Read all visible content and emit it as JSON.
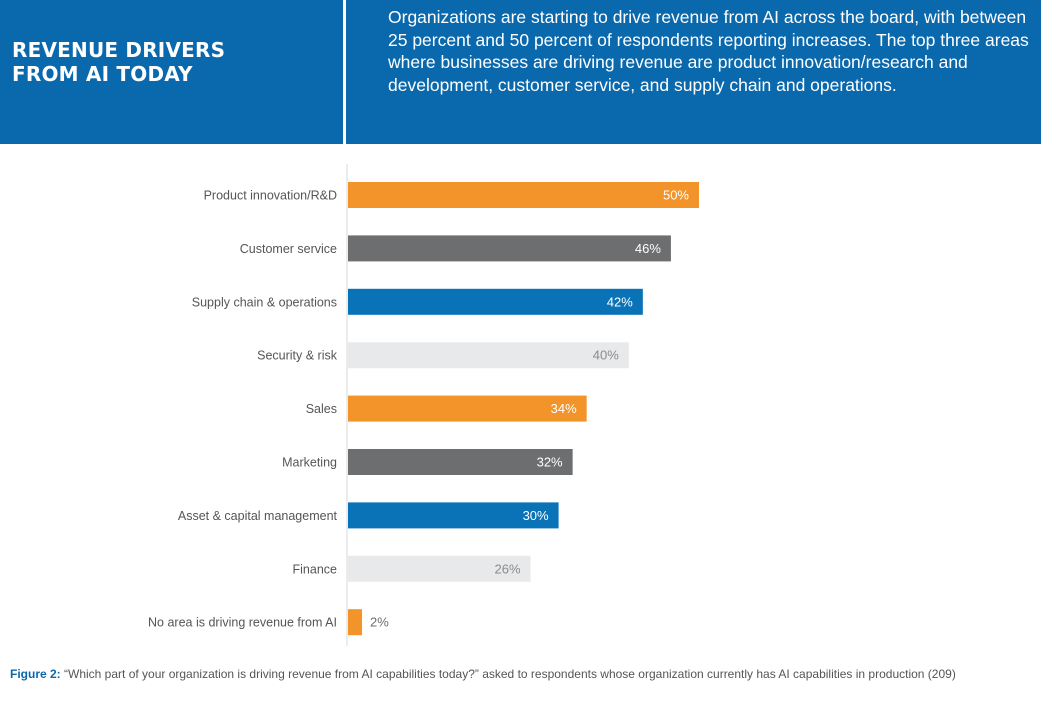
{
  "header": {
    "title_line1": "REVENUE DRIVERS",
    "title_line2": "FROM AI TODAY",
    "description": "Organizations are starting to drive revenue from AI across the board, with between 25 percent and 50 percent of respondents reporting increases. The top three areas where businesses are driving revenue are product innovation/research and development, customer service, and supply chain and operations."
  },
  "chart_data": {
    "type": "bar",
    "orientation": "horizontal",
    "categories": [
      "Product innovation/R&D",
      "Customer service",
      "Supply chain & operations",
      "Security & risk",
      "Sales",
      "Marketing",
      "Asset & capital management",
      "Finance",
      "No area is driving revenue from AI"
    ],
    "values": [
      50,
      46,
      42,
      40,
      34,
      32,
      30,
      26,
      2
    ],
    "value_labels": [
      "50%",
      "46%",
      "42%",
      "40%",
      "34%",
      "32%",
      "30%",
      "26%",
      "2%"
    ],
    "colors": [
      "#f2942a",
      "#6d6e70",
      "#0a73b8",
      "#e8e9eb",
      "#f2942a",
      "#6d6e70",
      "#0a73b8",
      "#e8e9eb",
      "#f2942a"
    ],
    "xlim": [
      0,
      100
    ],
    "grid": false,
    "legend": "none"
  },
  "footer": {
    "label": "Figure 2:",
    "text": " “Which part of your organization is driving revenue from AI capabilities today?” asked to respondents whose organization currently has AI capabilities in production (209)"
  }
}
